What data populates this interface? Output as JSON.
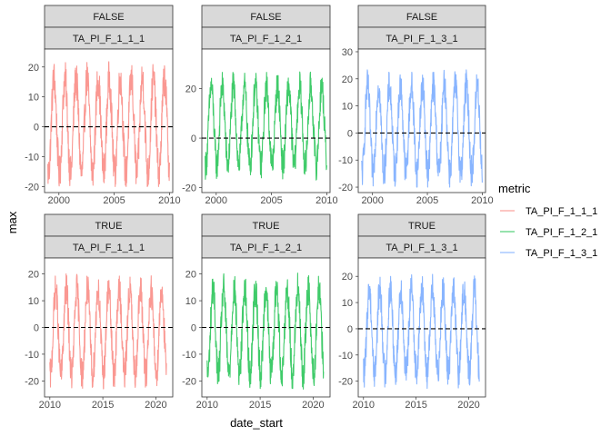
{
  "chart_data": {
    "type": "line",
    "xlabel": "date_start",
    "ylabel": "max",
    "legend": {
      "title": "metric",
      "position": "right",
      "entries": [
        {
          "label": "TA_PI_F_1_1_1",
          "color": "#F8766D"
        },
        {
          "label": "TA_PI_F_1_2_1",
          "color": "#00BA38"
        },
        {
          "label": "TA_PI_F_1_3_1",
          "color": "#619CFF"
        }
      ]
    },
    "reference_line": {
      "y": 0,
      "style": "dashed"
    },
    "grid": false,
    "panels": [
      {
        "row_label": "FALSE",
        "col_label": "TA_PI_F_1_1_1",
        "metric_index": 0,
        "x_range": [
          1998.7,
          2010.3
        ],
        "x_ticks": [
          2000,
          2005,
          2010
        ],
        "y_range": [
          -22,
          26
        ],
        "y_ticks": [
          -20,
          -10,
          0,
          10,
          20
        ],
        "series": {
          "start": 1999.0,
          "end": 2010.0,
          "min": -20,
          "max": 24.5,
          "seasonal_amplitude": 16,
          "noise": 6
        }
      },
      {
        "row_label": "FALSE",
        "col_label": "TA_PI_F_1_2_1",
        "metric_index": 1,
        "x_range": [
          1998.7,
          2010.3
        ],
        "x_ticks": [
          2000,
          2005,
          2010
        ],
        "y_range": [
          -22,
          36
        ],
        "y_ticks": [
          -20,
          0,
          20
        ],
        "series": {
          "start": 1999.0,
          "end": 2010.0,
          "min": -20,
          "max": 34,
          "seasonal_amplitude": 16,
          "noise": 6
        }
      },
      {
        "row_label": "FALSE",
        "col_label": "TA_PI_F_1_3_1",
        "metric_index": 2,
        "x_range": [
          1998.7,
          2010.3
        ],
        "x_ticks": [
          2000,
          2005,
          2010
        ],
        "y_range": [
          -22,
          31
        ],
        "y_ticks": [
          -20,
          -10,
          0,
          10,
          20,
          30
        ],
        "series": {
          "start": 1999.0,
          "end": 2010.0,
          "min": -20,
          "max": 27,
          "seasonal_amplitude": 16,
          "noise": 6
        }
      },
      {
        "row_label": "TRUE",
        "col_label": "TA_PI_F_1_1_1",
        "metric_index": 0,
        "x_range": [
          2009.5,
          2021.6
        ],
        "x_ticks": [
          2010,
          2015,
          2020
        ],
        "y_range": [
          -26,
          26
        ],
        "y_ticks": [
          -20,
          -10,
          0,
          10,
          20
        ],
        "series": {
          "start": 2010.0,
          "end": 2021.0,
          "min": -24,
          "max": 24.5,
          "seasonal_amplitude": 16,
          "noise": 6
        }
      },
      {
        "row_label": "TRUE",
        "col_label": "TA_PI_F_1_2_1",
        "metric_index": 1,
        "x_range": [
          2009.5,
          2021.6
        ],
        "x_ticks": [
          2010,
          2015,
          2020
        ],
        "y_range": [
          -26,
          26
        ],
        "y_ticks": [
          -20,
          -10,
          0,
          10,
          20
        ],
        "series": {
          "start": 2010.0,
          "end": 2021.0,
          "min": -24,
          "max": 25,
          "seasonal_amplitude": 16,
          "noise": 6
        }
      },
      {
        "row_label": "TRUE",
        "col_label": "TA_PI_F_1_3_1",
        "metric_index": 2,
        "x_range": [
          2009.5,
          2021.6
        ],
        "x_ticks": [
          2010,
          2015,
          2020
        ],
        "y_range": [
          -26,
          27
        ],
        "y_ticks": [
          -20,
          -10,
          0,
          10,
          20
        ],
        "series": {
          "start": 2010.0,
          "end": 2021.0,
          "min": -24,
          "max": 26,
          "seasonal_amplitude": 16,
          "noise": 6
        }
      }
    ]
  }
}
